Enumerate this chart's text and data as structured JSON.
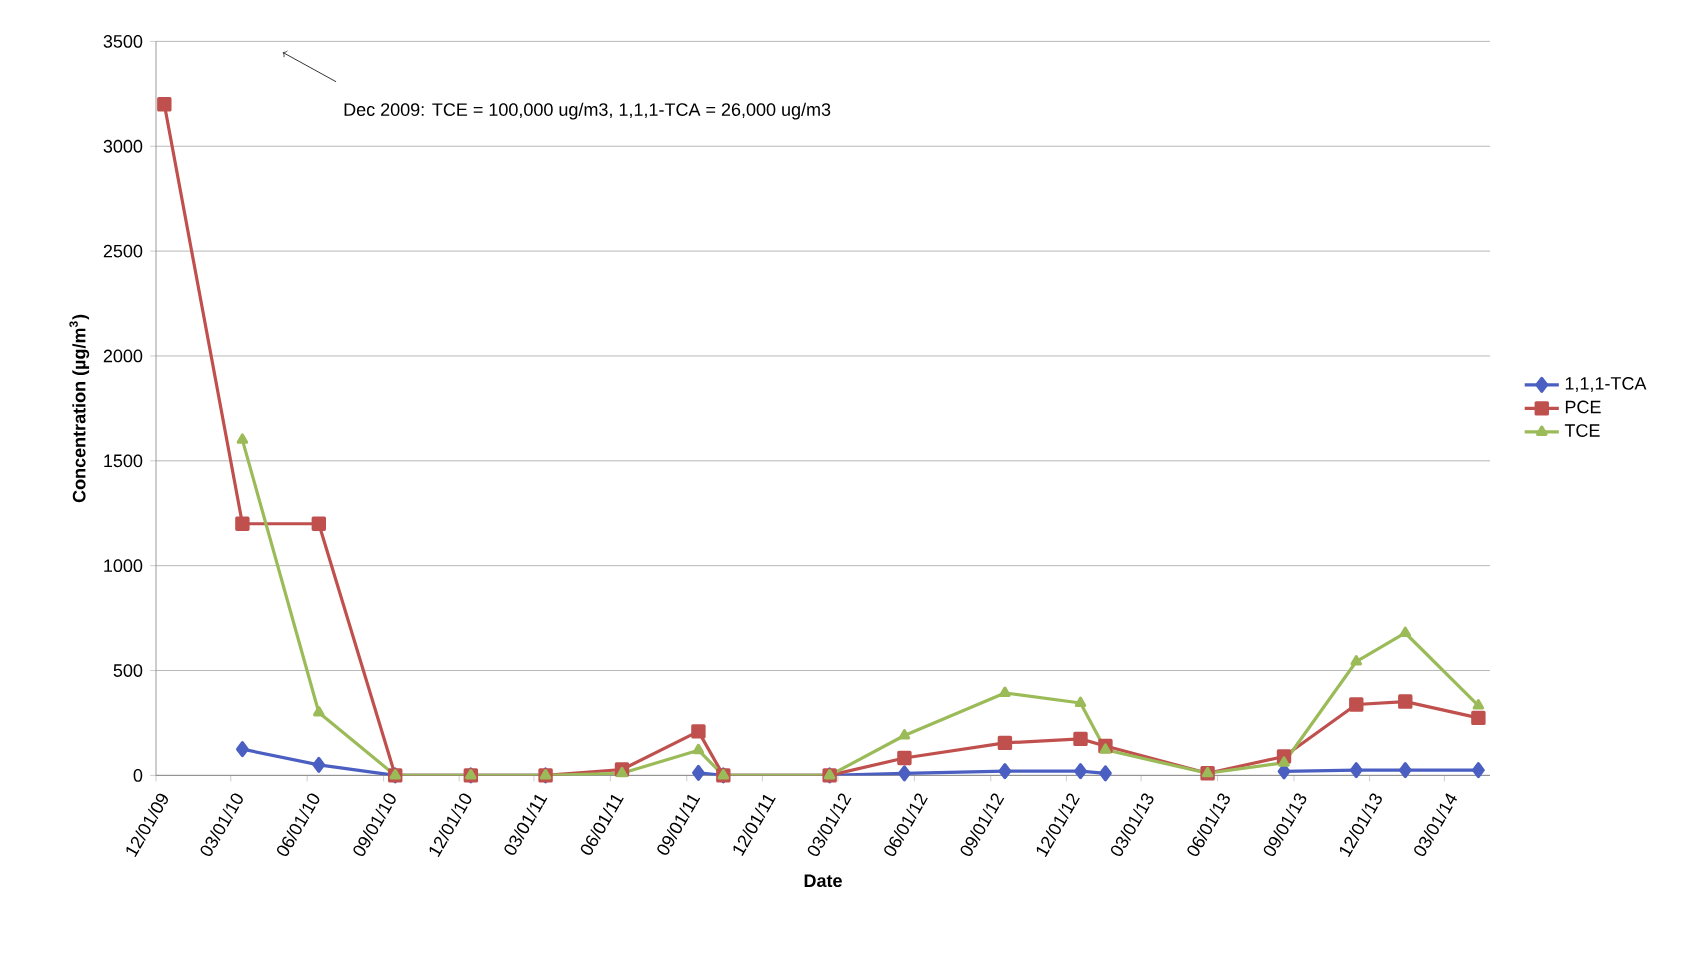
{
  "chart_data": {
    "type": "line",
    "xlabel": "Date",
    "ylabel": "Concentration (µg/m$^{3}$)",
    "annotations": [
      "Dec 2009: TCE = 100,000 ug/m3, 1,1,1-TCA = 26,000 ug/m3"
    ],
    "x": [
      "2009-12-11",
      "2010-03-15",
      "2010-06-15",
      "2010-09-15",
      "2010-12-15",
      "2011-03-15",
      "2011-06-15",
      "2011-09-15",
      "2011-10-15",
      "2012-02-20",
      "2012-05-20",
      "2012-09-18",
      "2012-12-18",
      "2013-01-17",
      "2013-05-20",
      "2013-08-20",
      "2013-11-15",
      "2014-01-13",
      "2014-04-11"
    ],
    "series": [
      {
        "name": "1,1,1-TCA",
        "color": "#4a5fc1",
        "marker": "diamond",
        "values": [
          null,
          125,
          50,
          0,
          0,
          0,
          null,
          12,
          0,
          0,
          10,
          20,
          20,
          10,
          null,
          19,
          25,
          25,
          25
        ]
      },
      {
        "name": "PCE",
        "color": "#c0504d",
        "marker": "square",
        "values": [
          3200,
          1200,
          1200,
          0,
          0,
          0,
          28,
          210,
          0,
          0,
          83,
          155,
          174,
          140,
          10,
          90,
          338,
          352,
          274
        ]
      },
      {
        "name": "TCE",
        "color": "#9bbb59",
        "marker": "triangle",
        "values": [
          null,
          1600,
          300,
          0,
          0,
          0,
          10,
          120,
          0,
          0,
          190,
          393,
          345,
          122,
          10,
          60,
          543,
          679,
          333
        ]
      }
    ],
    "xlim": [
      "2009-12-01",
      "2014-04-25"
    ],
    "xticks": [
      {
        "value": "2009-12-01",
        "label": "12/01/09"
      },
      {
        "value": "2010-03-01",
        "label": "03/01/10"
      },
      {
        "value": "2010-06-01",
        "label": "06/01/10"
      },
      {
        "value": "2010-09-01",
        "label": "09/01/10"
      },
      {
        "value": "2010-12-01",
        "label": "12/01/10"
      },
      {
        "value": "2011-03-01",
        "label": "03/01/11"
      },
      {
        "value": "2011-06-01",
        "label": "06/01/11"
      },
      {
        "value": "2011-09-01",
        "label": "09/01/11"
      },
      {
        "value": "2011-12-01",
        "label": "12/01/11"
      },
      {
        "value": "2012-03-01",
        "label": "03/01/12"
      },
      {
        "value": "2012-06-01",
        "label": "06/01/12"
      },
      {
        "value": "2012-09-01",
        "label": "09/01/12"
      },
      {
        "value": "2012-12-01",
        "label": "12/01/12"
      },
      {
        "value": "2013-03-01",
        "label": "03/01/13"
      },
      {
        "value": "2013-06-01",
        "label": "06/01/13"
      },
      {
        "value": "2013-09-01",
        "label": "09/01/13"
      },
      {
        "value": "2013-12-01",
        "label": "12/01/13"
      },
      {
        "value": "2014-03-01",
        "label": "03/01/14"
      }
    ],
    "ylim": [
      0,
      3500
    ],
    "yticks": [
      0,
      500,
      1000,
      1500,
      2000,
      2500,
      3000,
      3500
    ],
    "grid": "y",
    "legend": "right",
    "line_style": "solid"
  }
}
